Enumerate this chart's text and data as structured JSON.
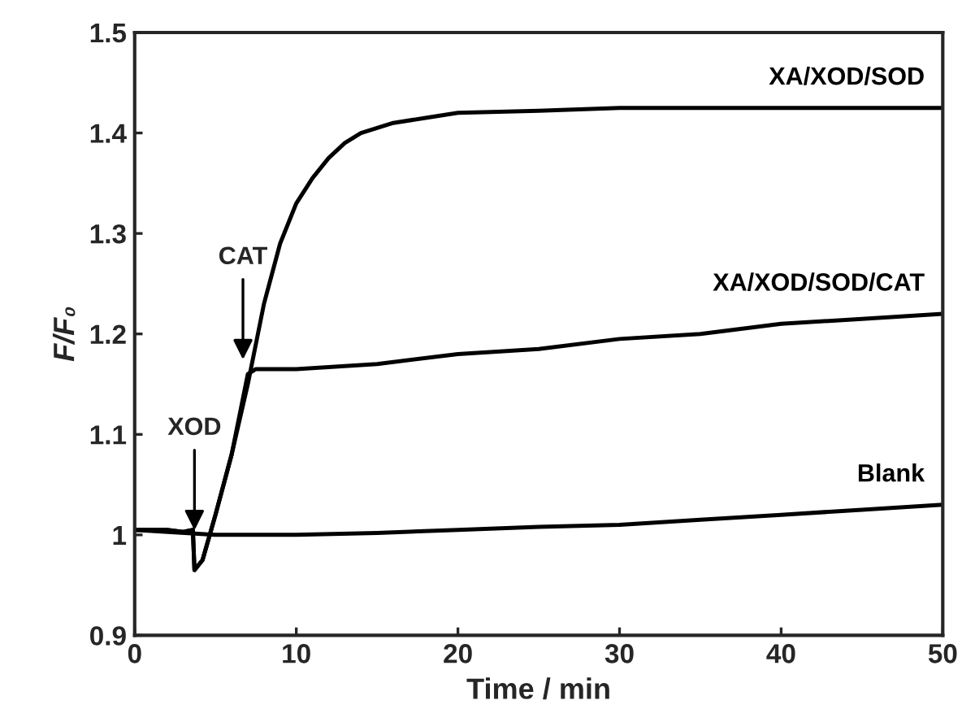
{
  "chart_data": {
    "type": "line",
    "xlabel": "Time / min",
    "ylabel": "F/F₀",
    "xlim": [
      0,
      50
    ],
    "ylim": [
      0.9,
      1.5
    ],
    "xticks": [
      0,
      10,
      20,
      30,
      40,
      50
    ],
    "yticks": [
      0.9,
      1,
      1.1,
      1.2,
      1.3,
      1.4,
      1.5
    ],
    "grid": false,
    "legend": false,
    "marker": "none",
    "line_style": "solid",
    "series": [
      {
        "name": "XA/XOD/SOD",
        "color": "#000000",
        "x": [
          0,
          1,
          2,
          3,
          3.6,
          3.7,
          4.2,
          5,
          6,
          7,
          8,
          9,
          10,
          11,
          12,
          13,
          14,
          16,
          18,
          20,
          25,
          30,
          35,
          40,
          45,
          50
        ],
        "values": [
          1.005,
          1.005,
          1.005,
          1.003,
          1.005,
          0.965,
          0.975,
          1.02,
          1.08,
          1.15,
          1.23,
          1.29,
          1.33,
          1.355,
          1.375,
          1.39,
          1.4,
          1.41,
          1.415,
          1.42,
          1.422,
          1.425,
          1.425,
          1.425,
          1.425,
          1.425
        ]
      },
      {
        "name": "XA/XOD/SOD/CAT",
        "color": "#000000",
        "x": [
          0,
          1,
          2,
          3,
          3.6,
          3.7,
          4.2,
          5,
          6,
          7,
          7.5,
          10,
          15,
          20,
          25,
          30,
          35,
          40,
          45,
          50
        ],
        "values": [
          1.005,
          1.005,
          1.005,
          1.003,
          1.005,
          0.965,
          0.975,
          1.02,
          1.08,
          1.16,
          1.165,
          1.165,
          1.17,
          1.18,
          1.185,
          1.195,
          1.2,
          1.21,
          1.215,
          1.22
        ]
      },
      {
        "name": "Blank",
        "color": "#000000",
        "x": [
          0,
          5,
          10,
          15,
          20,
          25,
          30,
          35,
          40,
          45,
          50
        ],
        "values": [
          1.005,
          1.0,
          1.0,
          1.002,
          1.005,
          1.008,
          1.01,
          1.015,
          1.02,
          1.025,
          1.03
        ]
      }
    ],
    "annotations": [
      {
        "text": "XOD",
        "x": 3.7,
        "y": 1.0
      },
      {
        "text": "CAT",
        "x": 6.7,
        "y": 1.17
      }
    ]
  }
}
